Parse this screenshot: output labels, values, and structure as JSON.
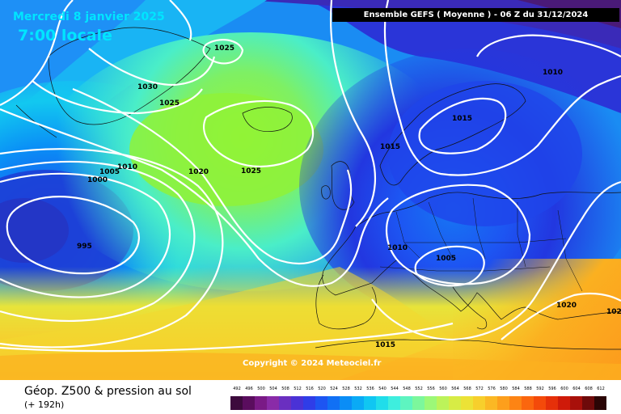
{
  "header": {
    "date": "Mercredi 8 janvier 2025",
    "local_time": "7:00 locale",
    "run_info": "Ensemble GEFS  ( Moyenne )  -  06 Z du 31/12/2024"
  },
  "copyright": "Copyright © 2024 Meteociel.fr",
  "footer": {
    "parameter": "Géop. Z500 & pression au sol",
    "lead_time": "(+ 192h)"
  },
  "isobars": [
    {
      "label": "1025"
    },
    {
      "label": "1030"
    },
    {
      "label": "1025"
    },
    {
      "label": "1020"
    },
    {
      "label": "1025"
    },
    {
      "label": "1010"
    },
    {
      "label": "1005"
    },
    {
      "label": "1000"
    },
    {
      "label": "995"
    },
    {
      "label": "1015"
    },
    {
      "label": "1015"
    },
    {
      "label": "1010"
    },
    {
      "label": "1010"
    },
    {
      "label": "1005"
    },
    {
      "label": "1020"
    },
    {
      "label": "1015"
    },
    {
      "label": "102"
    }
  ],
  "legend": {
    "labels": [
      "492",
      "496",
      "500",
      "504",
      "508",
      "512",
      "516",
      "520",
      "524",
      "528",
      "532",
      "536",
      "540",
      "544",
      "548",
      "552",
      "556",
      "560",
      "564",
      "568",
      "572",
      "576",
      "580",
      "584",
      "588",
      "592",
      "596",
      "600",
      "604",
      "608",
      "612"
    ],
    "colors": [
      "#3d0a3d",
      "#5a0d5e",
      "#7a1a86",
      "#8a2ba8",
      "#6a2fc0",
      "#4a32d6",
      "#2f3de8",
      "#1d55f2",
      "#1070f5",
      "#0a8df6",
      "#0aaaf5",
      "#10c6f2",
      "#20ddea",
      "#3eeede",
      "#5ef4c0",
      "#7cf79c",
      "#9cf878",
      "#bcf35a",
      "#d7ec45",
      "#ece236",
      "#f7cf2c",
      "#fbb824",
      "#fd9f1c",
      "#fd8414",
      "#fb660e",
      "#f44a0a",
      "#e63009",
      "#cf1a09",
      "#a8100a",
      "#6e0a0a",
      "#2a0505"
    ]
  }
}
